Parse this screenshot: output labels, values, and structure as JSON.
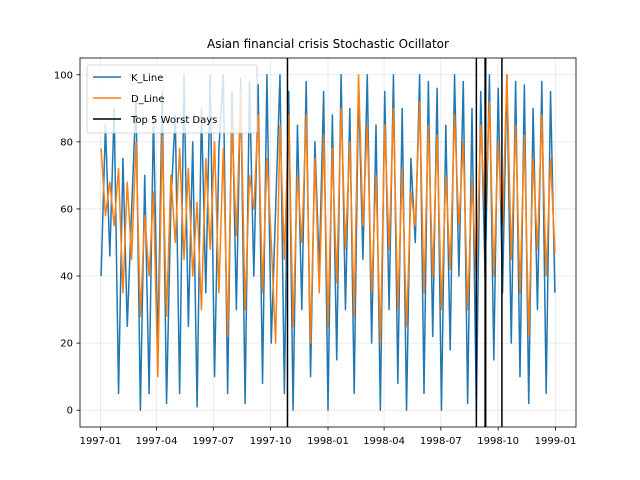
{
  "chart_data": {
    "type": "line",
    "title": "Asian financial crisis Stochastic Ocillator",
    "xlabel": "",
    "ylabel": "",
    "x_range": [
      "1997-01-01",
      "1999-01-01"
    ],
    "ylim": [
      -5,
      105
    ],
    "x_ticks": [
      "1997-01-01",
      "1997-04-01",
      "1997-07-01",
      "1997-10-01",
      "1998-01-01",
      "1998-04-01",
      "1998-07-01",
      "1998-10-01",
      "1999-01-01"
    ],
    "x_tick_labels": [
      "1997-01",
      "1997-04",
      "1997-07",
      "1997-10",
      "1998-01",
      "1998-04",
      "1998-07",
      "1998-10",
      "1999-01"
    ],
    "y_ticks": [
      0,
      20,
      40,
      60,
      80,
      100
    ],
    "y_tick_labels": [
      "0",
      "20",
      "40",
      "60",
      "80",
      "100"
    ],
    "grid": true,
    "legend_position": "top-left",
    "series": [
      {
        "name": "K_Line",
        "color": "#1f77b4",
        "points": [
          [
            "1997-01-02",
            40
          ],
          [
            "1997-01-09",
            85
          ],
          [
            "1997-01-16",
            46
          ],
          [
            "1997-01-23",
            90
          ],
          [
            "1997-01-30",
            5
          ],
          [
            "1997-02-06",
            75
          ],
          [
            "1997-02-13",
            25
          ],
          [
            "1997-02-20",
            60
          ],
          [
            "1997-02-27",
            93
          ],
          [
            "1997-03-06",
            0
          ],
          [
            "1997-03-13",
            70
          ],
          [
            "1997-03-20",
            5
          ],
          [
            "1997-03-27",
            88
          ],
          [
            "1997-04-03",
            18
          ],
          [
            "1997-04-10",
            95
          ],
          [
            "1997-04-17",
            2
          ],
          [
            "1997-04-24",
            62
          ],
          [
            "1997-05-01",
            88
          ],
          [
            "1997-05-08",
            5
          ],
          [
            "1997-05-15",
            100
          ],
          [
            "1997-05-22",
            25
          ],
          [
            "1997-05-29",
            80
          ],
          [
            "1997-06-05",
            1
          ],
          [
            "1997-06-12",
            90
          ],
          [
            "1997-06-19",
            35
          ],
          [
            "1997-06-26",
            100
          ],
          [
            "1997-07-03",
            10
          ],
          [
            "1997-07-10",
            78
          ],
          [
            "1997-07-17",
            100
          ],
          [
            "1997-07-24",
            5
          ],
          [
            "1997-07-31",
            95
          ],
          [
            "1997-08-07",
            30
          ],
          [
            "1997-08-14",
            99
          ],
          [
            "1997-08-21",
            2
          ],
          [
            "1997-08-28",
            98
          ],
          [
            "1997-09-04",
            40
          ],
          [
            "1997-09-11",
            97
          ],
          [
            "1997-09-18",
            8
          ],
          [
            "1997-09-25",
            100
          ],
          [
            "1997-10-02",
            20
          ],
          [
            "1997-10-09",
            60
          ],
          [
            "1997-10-16",
            100
          ],
          [
            "1997-10-23",
            5
          ],
          [
            "1997-10-30",
            95
          ],
          [
            "1997-11-06",
            0
          ],
          [
            "1997-11-13",
            85
          ],
          [
            "1997-11-20",
            30
          ],
          [
            "1997-11-27",
            98
          ],
          [
            "1997-12-04",
            10
          ],
          [
            "1997-12-11",
            80
          ],
          [
            "1997-12-18",
            42
          ],
          [
            "1997-12-25",
            95
          ],
          [
            "1998-01-01",
            0
          ],
          [
            "1998-01-08",
            88
          ],
          [
            "1998-01-15",
            15
          ],
          [
            "1998-01-22",
            100
          ],
          [
            "1998-01-29",
            30
          ],
          [
            "1998-02-05",
            90
          ],
          [
            "1998-02-12",
            5
          ],
          [
            "1998-02-19",
            97
          ],
          [
            "1998-02-26",
            45
          ],
          [
            "1998-03-05",
            100
          ],
          [
            "1998-03-12",
            20
          ],
          [
            "1998-03-19",
            85
          ],
          [
            "1998-03-26",
            0
          ],
          [
            "1998-04-02",
            95
          ],
          [
            "1998-04-09",
            30
          ],
          [
            "1998-04-16",
            100
          ],
          [
            "1998-04-23",
            8
          ],
          [
            "1998-04-30",
            90
          ],
          [
            "1998-05-07",
            0
          ],
          [
            "1998-05-14",
            75
          ],
          [
            "1998-05-21",
            50
          ],
          [
            "1998-05-28",
            100
          ],
          [
            "1998-06-04",
            5
          ],
          [
            "1998-06-11",
            98
          ],
          [
            "1998-06-18",
            22
          ],
          [
            "1998-06-25",
            96
          ],
          [
            "1998-07-02",
            0
          ],
          [
            "1998-07-09",
            85
          ],
          [
            "1998-07-16",
            18
          ],
          [
            "1998-07-23",
            100
          ],
          [
            "1998-07-30",
            40
          ],
          [
            "1998-08-06",
            98
          ],
          [
            "1998-08-13",
            2
          ],
          [
            "1998-08-20",
            90
          ],
          [
            "1998-08-27",
            0
          ],
          [
            "1998-09-03",
            95
          ],
          [
            "1998-09-10",
            40
          ],
          [
            "1998-09-17",
            100
          ],
          [
            "1998-09-24",
            15
          ],
          [
            "1998-10-01",
            96
          ],
          [
            "1998-10-08",
            35
          ],
          [
            "1998-10-15",
            100
          ],
          [
            "1998-10-22",
            20
          ],
          [
            "1998-10-29",
            98
          ],
          [
            "1998-11-05",
            10
          ],
          [
            "1998-11-12",
            97
          ],
          [
            "1998-11-19",
            2
          ],
          [
            "1998-11-26",
            90
          ],
          [
            "1998-12-03",
            30
          ],
          [
            "1998-12-10",
            98
          ],
          [
            "1998-12-17",
            5
          ],
          [
            "1998-12-24",
            95
          ],
          [
            "1998-12-31",
            35
          ]
        ]
      },
      {
        "name": "D_Line",
        "color": "#ff7f0e",
        "points": [
          [
            "1997-01-02",
            78
          ],
          [
            "1997-01-09",
            58
          ],
          [
            "1997-01-16",
            68
          ],
          [
            "1997-01-23",
            55
          ],
          [
            "1997-01-30",
            72
          ],
          [
            "1997-02-06",
            35
          ],
          [
            "1997-02-13",
            68
          ],
          [
            "1997-02-20",
            45
          ],
          [
            "1997-02-27",
            80
          ],
          [
            "1997-03-06",
            28
          ],
          [
            "1997-03-13",
            58
          ],
          [
            "1997-03-20",
            40
          ],
          [
            "1997-03-27",
            65
          ],
          [
            "1997-04-03",
            10
          ],
          [
            "1997-04-10",
            82
          ],
          [
            "1997-04-17",
            28
          ],
          [
            "1997-04-24",
            70
          ],
          [
            "1997-05-01",
            50
          ],
          [
            "1997-05-08",
            78
          ],
          [
            "1997-05-15",
            45
          ],
          [
            "1997-05-22",
            72
          ],
          [
            "1997-05-29",
            40
          ],
          [
            "1997-06-05",
            62
          ],
          [
            "1997-06-12",
            30
          ],
          [
            "1997-06-19",
            75
          ],
          [
            "1997-06-26",
            48
          ],
          [
            "1997-07-03",
            80
          ],
          [
            "1997-07-10",
            35
          ],
          [
            "1997-07-17",
            78
          ],
          [
            "1997-07-24",
            22
          ],
          [
            "1997-07-31",
            85
          ],
          [
            "1997-08-07",
            52
          ],
          [
            "1997-08-14",
            95
          ],
          [
            "1997-08-21",
            30
          ],
          [
            "1997-08-28",
            70
          ],
          [
            "1997-09-04",
            60
          ],
          [
            "1997-09-11",
            88
          ],
          [
            "1997-09-18",
            35
          ],
          [
            "1997-09-25",
            75
          ],
          [
            "1997-10-02",
            50
          ],
          [
            "1997-10-09",
            20
          ],
          [
            "1997-10-16",
            85
          ],
          [
            "1997-10-23",
            45
          ],
          [
            "1997-10-30",
            88
          ],
          [
            "1997-11-06",
            25
          ],
          [
            "1997-11-13",
            70
          ],
          [
            "1997-11-20",
            50
          ],
          [
            "1997-11-27",
            88
          ],
          [
            "1997-12-04",
            20
          ],
          [
            "1997-12-11",
            75
          ],
          [
            "1997-12-18",
            35
          ],
          [
            "1997-12-25",
            82
          ],
          [
            "1998-01-01",
            25
          ],
          [
            "1998-01-08",
            78
          ],
          [
            "1998-01-15",
            38
          ],
          [
            "1998-01-22",
            90
          ],
          [
            "1998-01-29",
            48
          ],
          [
            "1998-02-05",
            80
          ],
          [
            "1998-02-12",
            28
          ],
          [
            "1998-02-19",
            100
          ],
          [
            "1998-02-26",
            55
          ],
          [
            "1998-03-05",
            85
          ],
          [
            "1998-03-12",
            35
          ],
          [
            "1998-03-19",
            70
          ],
          [
            "1998-03-26",
            20
          ],
          [
            "1998-04-02",
            85
          ],
          [
            "1998-04-09",
            48
          ],
          [
            "1998-04-16",
            90
          ],
          [
            "1998-04-23",
            30
          ],
          [
            "1998-04-30",
            72
          ],
          [
            "1998-05-07",
            25
          ],
          [
            "1998-05-14",
            65
          ],
          [
            "1998-05-21",
            55
          ],
          [
            "1998-05-28",
            92
          ],
          [
            "1998-06-04",
            35
          ],
          [
            "1998-06-11",
            85
          ],
          [
            "1998-06-18",
            40
          ],
          [
            "1998-06-25",
            82
          ],
          [
            "1998-07-02",
            30
          ],
          [
            "1998-07-09",
            70
          ],
          [
            "1998-07-16",
            42
          ],
          [
            "1998-07-23",
            88
          ],
          [
            "1998-07-30",
            55
          ],
          [
            "1998-08-06",
            80
          ],
          [
            "1998-08-13",
            30
          ],
          [
            "1998-08-20",
            68
          ],
          [
            "1998-08-27",
            40
          ],
          [
            "1998-09-03",
            85
          ],
          [
            "1998-09-10",
            58
          ],
          [
            "1998-09-17",
            92
          ],
          [
            "1998-09-24",
            40
          ],
          [
            "1998-10-01",
            80
          ],
          [
            "1998-10-08",
            55
          ],
          [
            "1998-10-15",
            100
          ],
          [
            "1998-10-22",
            45
          ],
          [
            "1998-10-29",
            85
          ],
          [
            "1998-11-05",
            35
          ],
          [
            "1998-11-12",
            82
          ],
          [
            "1998-11-19",
            22
          ],
          [
            "1998-11-26",
            75
          ],
          [
            "1998-12-03",
            48
          ],
          [
            "1998-12-10",
            88
          ],
          [
            "1998-12-17",
            40
          ],
          [
            "1998-12-24",
            75
          ],
          [
            "1998-12-31",
            47
          ]
        ]
      }
    ],
    "vertical_lines": {
      "name": "Top 5 Worst Days",
      "color": "#000000",
      "dates": [
        "1997-10-28",
        "1998-08-27",
        "1998-09-10",
        "1998-09-11",
        "1998-10-07"
      ]
    }
  }
}
